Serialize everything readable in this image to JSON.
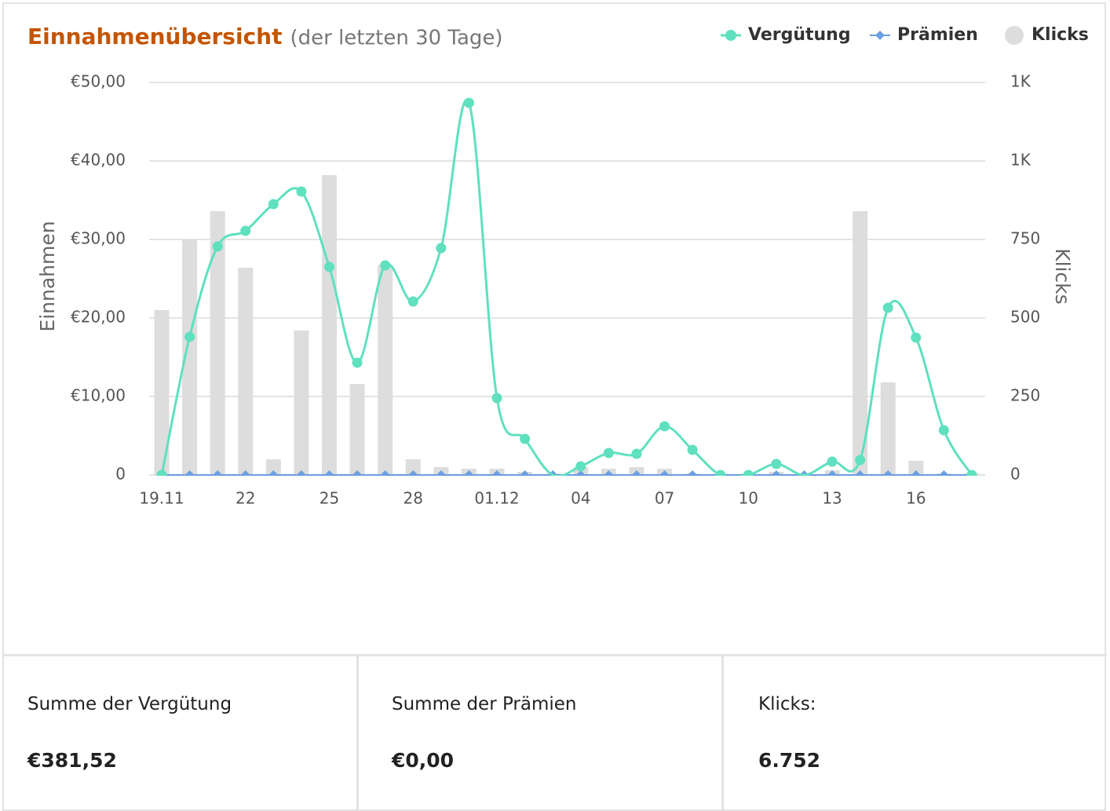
{
  "chart_data": {
    "type": "combo",
    "title": "Einnahmenübersicht",
    "subtitle": "(der letzten 30 Tage)",
    "y_label": "Einnahmen",
    "y2_label": "Klicks",
    "categories": [
      "19.11",
      null,
      null,
      "22",
      null,
      null,
      "25",
      null,
      null,
      "28",
      null,
      null,
      "01.12",
      null,
      null,
      "04",
      null,
      null,
      "07",
      null,
      null,
      "10",
      null,
      null,
      "13",
      null,
      null,
      "16",
      null,
      null
    ],
    "series": [
      {
        "name": "Vergütung",
        "type": "spline",
        "color": "#5fe0bf",
        "values": [
          0,
          17.6,
          29.1,
          31.1,
          34.5,
          36.1,
          26.5,
          14.3,
          26.7,
          22.1,
          28.9,
          47.4,
          9.8,
          4.6,
          0,
          1.1,
          2.8,
          2.7,
          6.2,
          3.2,
          0,
          0,
          1.4,
          0,
          1.7,
          1.9,
          21.3,
          17.5,
          5.7,
          0
        ]
      },
      {
        "name": "Prämien",
        "type": "line",
        "color": "#6b9fe0",
        "values": [
          0,
          0,
          0,
          0,
          0,
          0,
          0,
          0,
          0,
          0,
          0,
          0,
          0,
          0,
          0,
          0,
          0,
          0,
          0,
          0,
          0,
          0,
          0,
          0,
          0,
          0,
          0,
          0,
          0,
          0
        ]
      },
      {
        "name": "Klicks",
        "type": "bar",
        "axis": "y2",
        "color": "#dddddd",
        "values": [
          525,
          750,
          840,
          660,
          50,
          460,
          955,
          290,
          670,
          50,
          25,
          20,
          20,
          10,
          5,
          25,
          20,
          25,
          20,
          5,
          5,
          5,
          10,
          5,
          15,
          840,
          295,
          45,
          5,
          5
        ]
      }
    ],
    "ylim": [
      0,
      50
    ],
    "yticks": [
      0,
      {
        "value": 10,
        "label": "€10,00"
      },
      {
        "value": 20,
        "label": "€20,00"
      },
      {
        "value": 30,
        "label": "€30,00"
      },
      {
        "value": 40,
        "label": "€40,00"
      },
      {
        "value": 50,
        "label": "€50,00"
      }
    ],
    "y2lim": [
      0,
      1250
    ],
    "y2ticks": [
      0,
      250,
      500,
      750,
      {
        "value": 1000,
        "label": "1K"
      },
      {
        "value": 1250,
        "label": "1K"
      }
    ],
    "grid": true,
    "legend": "top-right"
  },
  "summary": [
    {
      "label": "Summe der Vergütung",
      "value": "€381,52"
    },
    {
      "label": "Summe der Prämien",
      "value": "€0,00"
    },
    {
      "label": "Klicks:",
      "value": "6.752"
    }
  ]
}
